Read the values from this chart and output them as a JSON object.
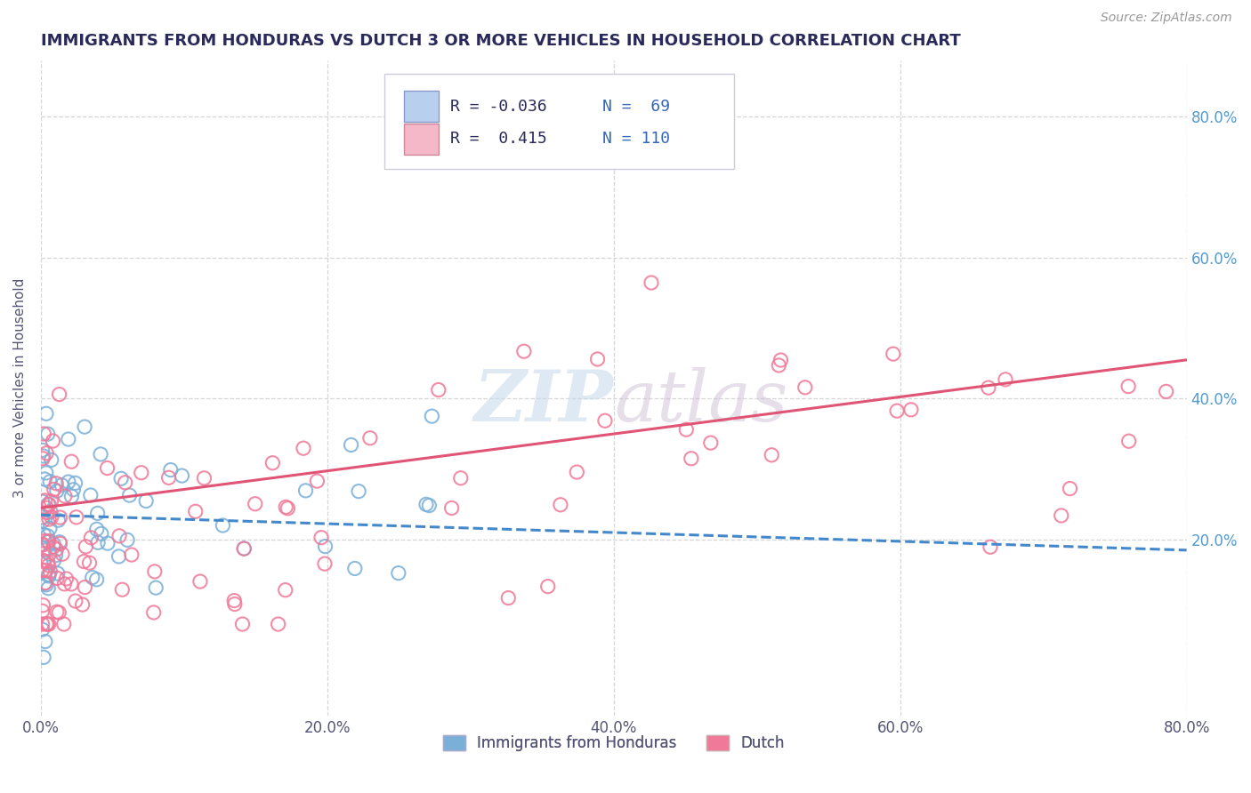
{
  "title": "IMMIGRANTS FROM HONDURAS VS DUTCH 3 OR MORE VEHICLES IN HOUSEHOLD CORRELATION CHART",
  "source": "Source: ZipAtlas.com",
  "ylabel": "3 or more Vehicles in Household",
  "xlim": [
    0.0,
    0.8
  ],
  "ylim": [
    -0.05,
    0.88
  ],
  "xtick_vals": [
    0.0,
    0.2,
    0.4,
    0.6,
    0.8
  ],
  "xtick_labels": [
    "0.0%",
    "20.0%",
    "40.0%",
    "60.0%",
    "80.0%"
  ],
  "ytick_vals": [
    0.2,
    0.4,
    0.6,
    0.8
  ],
  "ytick_labels": [
    "20.0%",
    "40.0%",
    "60.0%",
    "80.0%"
  ],
  "scatter_blue_color": "#7ab0d8",
  "scatter_pink_color": "#f07898",
  "line_blue_color": "#4488cc",
  "line_pink_color": "#e05575",
  "background_color": "#ffffff",
  "grid_color": "#cccccc",
  "title_color": "#2a2a5a",
  "legend_blue_fill": "#b8d0ee",
  "legend_pink_fill": "#f4b8c8",
  "watermark_color": "#c5d8ea",
  "R_blue": -0.036,
  "N_blue": 69,
  "R_pink": 0.415,
  "N_pink": 110,
  "blue_line_x0": 0.0,
  "blue_line_y0": 0.235,
  "blue_line_x1": 0.8,
  "blue_line_y1": 0.185,
  "pink_line_x0": 0.0,
  "pink_line_y0": 0.245,
  "pink_line_x1": 0.8,
  "pink_line_y1": 0.455
}
